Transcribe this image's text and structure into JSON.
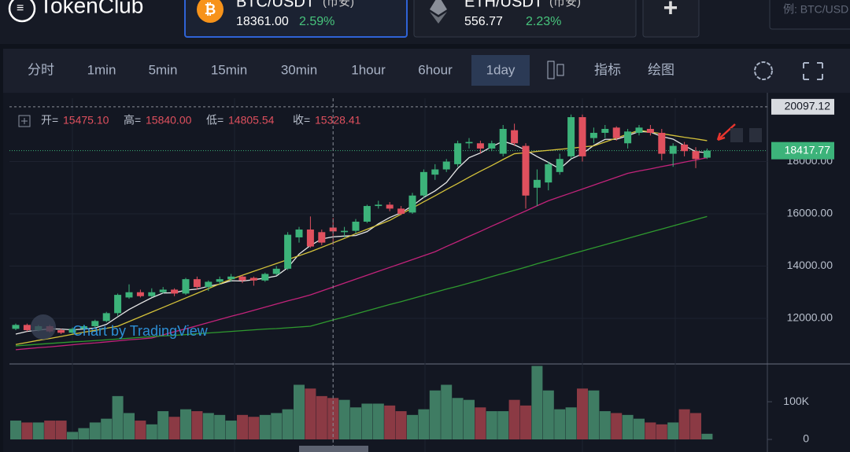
{
  "header": {
    "logo": "TokenClub",
    "tickers": [
      {
        "pair": "BTC/USDT",
        "exchange": "(币安)",
        "price": "18361.00",
        "change": "2.59%"
      },
      {
        "pair": "ETH/USDT",
        "exchange": "(币安)",
        "price": "556.77",
        "change": "2.23%"
      }
    ],
    "add": "+",
    "search_placeholder": "例: BTC/USD"
  },
  "toolbar": {
    "intervals": [
      "分时",
      "1min",
      "5min",
      "15min",
      "30min",
      "1hour",
      "6hour",
      "1day"
    ],
    "active_interval": "1day",
    "tools": [
      "指标",
      "绘图"
    ]
  },
  "chart_data": {
    "type": "candlestick",
    "ohlc_legend": [
      {
        "key": "开=",
        "text": "15475.10"
      },
      {
        "key": "高=",
        "text": "15840.00"
      },
      {
        "key": "低=",
        "text": "14805.54"
      },
      {
        "key": "收=",
        "text": "15328.41"
      }
    ],
    "watermark": "Chart by TradingView",
    "up_color": "#3cb37a",
    "down_color": "#e0505e",
    "ylim": [
      10346,
      20152
    ],
    "yticks": [
      {
        "value": 12000,
        "label": "12000.00"
      },
      {
        "value": 14000,
        "label": "14000.00"
      },
      {
        "value": 16000,
        "label": "16000.00"
      },
      {
        "value": 18000,
        "label": "18000.00"
      }
    ],
    "grid": true,
    "high_line": 20097.12,
    "last_price": 18417.77,
    "open": [
      11600,
      11750,
      11550,
      11700,
      11550,
      11450,
      11600,
      11700,
      11900,
      12200,
      12800,
      13000,
      12850,
      13000,
      13100,
      12950,
      13500,
      13200,
      13400,
      13500,
      13600,
      13550,
      13450,
      13700,
      13900,
      15100,
      15400,
      15300,
      15475.1,
      15300,
      15350,
      15700,
      16300,
      16350,
      16200,
      16050,
      16700,
      17500,
      17700,
      17900,
      18700,
      18700,
      18500,
      18300,
      19200,
      18600,
      17000,
      17200,
      17600,
      18200,
      19700,
      18900,
      19100,
      19300,
      18700,
      19100,
      19250,
      19100,
      18300,
      18650,
      18400,
      18150
    ],
    "high": [
      11800,
      11800,
      11750,
      11750,
      11600,
      11650,
      11750,
      11950,
      12250,
      12950,
      13300,
      13100,
      13150,
      13200,
      13150,
      13550,
      13600,
      13450,
      13600,
      13700,
      13650,
      13600,
      13750,
      14000,
      15300,
      15500,
      15900,
      15400,
      15840,
      15500,
      15800,
      16350,
      16500,
      16450,
      16300,
      16800,
      17700,
      17900,
      18100,
      18800,
      18900,
      18800,
      18800,
      19400,
      19450,
      18700,
      17700,
      18000,
      18300,
      19800,
      19800,
      19300,
      19400,
      19350,
      19250,
      19400,
      19400,
      19250,
      18700,
      18750,
      18550,
      18500
    ],
    "low": [
      11550,
      11500,
      11500,
      11450,
      11400,
      11400,
      11550,
      11650,
      11850,
      12100,
      12750,
      12800,
      12800,
      12950,
      12850,
      12900,
      13100,
      13050,
      13300,
      13400,
      13350,
      13250,
      13400,
      13650,
      13850,
      14900,
      14700,
      14800,
      14805.54,
      15100,
      15250,
      15650,
      16200,
      16100,
      15950,
      16000,
      16600,
      17300,
      17600,
      17800,
      18500,
      18300,
      18400,
      18200,
      18600,
      16200,
      16300,
      16900,
      17500,
      18100,
      18000,
      18700,
      18900,
      18800,
      18500,
      19000,
      19000,
      18050,
      17800,
      18200,
      17750,
      18100
    ],
    "close": [
      11750,
      11550,
      11700,
      11500,
      11450,
      11600,
      11700,
      11900,
      12200,
      12900,
      13000,
      12850,
      13000,
      13100,
      12950,
      13500,
      13200,
      13400,
      13500,
      13600,
      13450,
      13450,
      13700,
      13900,
      15200,
      15400,
      14750,
      14900,
      15328.41,
      15350,
      15700,
      16300,
      16350,
      16200,
      16000,
      16700,
      17600,
      17700,
      18000,
      18700,
      18750,
      18500,
      18700,
      19250,
      18700,
      16700,
      17300,
      17900,
      18100,
      19700,
      18200,
      19100,
      19250,
      18900,
      19150,
      19300,
      19100,
      18300,
      18600,
      18400,
      18100,
      18417.77
    ],
    "moving_averages": [
      {
        "color": "#e8e8e8",
        "values": [
          11400,
          11500,
          11550,
          11600,
          11590,
          11560,
          11590,
          11630,
          11770,
          12060,
          12340,
          12570,
          12790,
          12970,
          12980,
          13080,
          13120,
          13230,
          13310,
          13440,
          13430,
          13480,
          13540,
          13620,
          13940,
          14460,
          14790,
          15040,
          15120,
          15150,
          15170,
          15320,
          15620,
          15860,
          16040,
          16310,
          16630,
          16880,
          17200,
          17740,
          18150,
          18330,
          18570,
          18780,
          18640,
          18440,
          18190,
          17970,
          17720,
          18100,
          18300,
          18620,
          18850,
          18850,
          18990,
          19150,
          19130,
          18960,
          18860,
          18610,
          18380,
          18340
        ]
      },
      {
        "color": "#d4c23a",
        "values": [
          11000,
          11080,
          11160,
          11230,
          11310,
          11390,
          11470,
          11540,
          11620,
          11700,
          11880,
          12060,
          12240,
          12420,
          12600,
          12780,
          12960,
          13140,
          13320,
          13500,
          13650,
          13800,
          13950,
          14100,
          14250,
          14400,
          14550,
          14720,
          14890,
          15060,
          15240,
          15410,
          15580,
          15750,
          15990,
          16220,
          16460,
          16690,
          16930,
          17160,
          17400,
          17630,
          17850,
          18080,
          18300,
          18340,
          18390,
          18430,
          18470,
          18510,
          18560,
          18600,
          18750,
          18900,
          19050,
          19200,
          19130,
          19070,
          19000,
          18930,
          18870,
          18800
        ]
      },
      {
        "color": "#c2237a",
        "values": [
          10800,
          10840,
          10880,
          10910,
          10950,
          10990,
          11030,
          11060,
          11100,
          11140,
          11180,
          11210,
          11250,
          11370,
          11490,
          11600,
          11720,
          11840,
          11960,
          12080,
          12190,
          12310,
          12430,
          12550,
          12670,
          12780,
          12900,
          13050,
          13200,
          13350,
          13500,
          13650,
          13800,
          13950,
          14100,
          14250,
          14400,
          14550,
          14750,
          14940,
          15140,
          15330,
          15530,
          15720,
          15920,
          16110,
          16310,
          16500,
          16650,
          16800,
          16950,
          17100,
          17250,
          17400,
          17550,
          17640,
          17720,
          17810,
          17890,
          17980,
          18060,
          18150
        ]
      },
      {
        "color": "#2f9a2f",
        "values": [
          10950,
          10980,
          11010,
          11040,
          11070,
          11100,
          11120,
          11150,
          11180,
          11210,
          11240,
          11270,
          11300,
          11330,
          11350,
          11380,
          11410,
          11440,
          11470,
          11500,
          11530,
          11560,
          11590,
          11610,
          11640,
          11670,
          11700,
          11820,
          11940,
          12050,
          12170,
          12290,
          12410,
          12530,
          12640,
          12760,
          12880,
          13000,
          13120,
          13230,
          13350,
          13470,
          13600,
          13720,
          13840,
          13960,
          14090,
          14210,
          14330,
          14460,
          14580,
          14700,
          14820,
          14940,
          15060,
          15180,
          15300,
          15420,
          15540,
          15660,
          15780,
          15900
        ]
      }
    ],
    "volume": {
      "up_color": "#3f7c63",
      "down_color": "#8b3a44",
      "ylim": [
        -12500,
        194000
      ],
      "yticks": [
        0,
        {
          "value": 100000,
          "label": "100K"
        }
      ],
      "values": [
        50000,
        45000,
        45000,
        50000,
        50000,
        20000,
        30000,
        45000,
        55000,
        115000,
        70000,
        50000,
        40000,
        75000,
        60000,
        80000,
        75000,
        70000,
        65000,
        50000,
        65000,
        60000,
        65000,
        70000,
        80000,
        145000,
        135000,
        115000,
        110000,
        105000,
        85000,
        95000,
        95000,
        90000,
        75000,
        65000,
        80000,
        130000,
        145000,
        110000,
        105000,
        85000,
        75000,
        75000,
        105000,
        90000,
        195000,
        130000,
        80000,
        85000,
        135000,
        130000,
        75000,
        70000,
        65000,
        55000,
        45000,
        40000,
        45000,
        80000,
        70000,
        15000
      ]
    }
  }
}
